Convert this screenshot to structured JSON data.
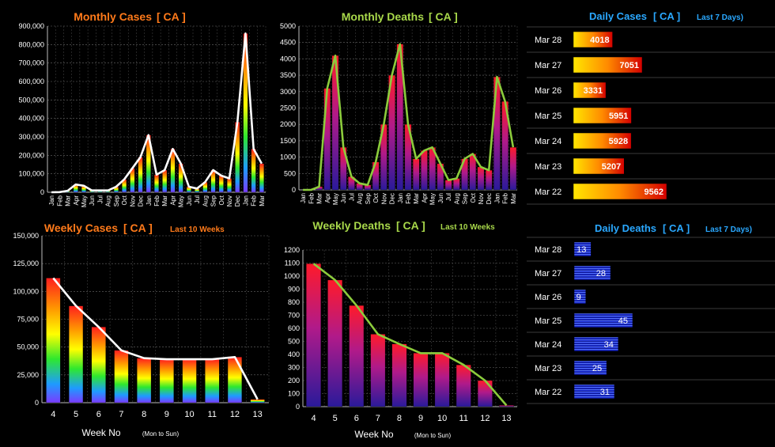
{
  "monthly_cases": {
    "title": "Monthly Cases",
    "region": "[ CA ]",
    "color_title": "#ff7a1a"
  },
  "monthly_deaths": {
    "title": "Monthly Deaths",
    "region": "[ CA ]",
    "color_title": "#a8d84a"
  },
  "daily_cases": {
    "title": "Daily Cases",
    "region": "[ CA ]",
    "note": "Last 7 Days)",
    "color_title": "#2aa8ff"
  },
  "weekly_cases": {
    "title": "Weekly Cases",
    "region": "[ CA ]",
    "note": "Last 10 Weeks",
    "xlabel": "Week No",
    "xnote": "(Mon to Sun)",
    "color_title": "#ff7a1a"
  },
  "weekly_deaths": {
    "title": "Weekly Deaths",
    "region": "[ CA ]",
    "note": "Last 10 Weeks",
    "xlabel": "Week No",
    "xnote": "(Mon to Sun)",
    "color_title": "#a8d84a"
  },
  "daily_deaths": {
    "title": "Daily Deaths",
    "region": "[ CA ]",
    "note": "Last 7 Days)",
    "color_title": "#2aa8ff"
  },
  "chart_data": [
    {
      "id": "monthly_cases",
      "type": "bar",
      "categories": [
        "Jan",
        "Feb",
        "Mar",
        "Apr",
        "May",
        "Jun",
        "Jul",
        "Aug",
        "Sep",
        "Oct",
        "Nov",
        "Dec",
        "Jan",
        "Feb",
        "Mar",
        "Apr",
        "May",
        "Jun",
        "Jul",
        "Aug",
        "Sep",
        "Oct",
        "Nov",
        "Dec",
        "Jan",
        "Feb",
        "Mar"
      ],
      "values": [
        0,
        1000,
        8000,
        42000,
        35000,
        10000,
        10000,
        10000,
        30000,
        70000,
        130000,
        190000,
        310000,
        95000,
        120000,
        235000,
        155000,
        30000,
        20000,
        55000,
        120000,
        90000,
        75000,
        380000,
        860000,
        235000,
        155000
      ],
      "ylim": [
        0,
        900000
      ],
      "yticks": [
        "0",
        "100,000",
        "200,000",
        "300,000",
        "400,000",
        "500,000",
        "600,000",
        "700,000",
        "800,000",
        "900,000"
      ]
    },
    {
      "id": "monthly_deaths",
      "type": "bar",
      "categories": [
        "Jan",
        "Feb",
        "Mar",
        "Apr",
        "May",
        "Jun",
        "Jul",
        "Aug",
        "Sep",
        "Oct",
        "Nov",
        "Dec",
        "Jan",
        "Feb",
        "Mar",
        "Apr",
        "May",
        "Jun",
        "Jul",
        "Aug",
        "Sep",
        "Oct",
        "Nov",
        "Dec",
        "Jan",
        "Feb",
        "Mar"
      ],
      "values": [
        0,
        0,
        100,
        3100,
        4100,
        1300,
        400,
        200,
        150,
        850,
        2000,
        3500,
        4450,
        2000,
        950,
        1200,
        1300,
        800,
        300,
        350,
        950,
        1100,
        700,
        600,
        3450,
        2700,
        1300
      ],
      "ylim": [
        0,
        5000
      ],
      "yticks": [
        "0",
        "500",
        "1000",
        "1500",
        "2000",
        "2500",
        "3000",
        "3500",
        "4000",
        "4500",
        "5000"
      ]
    },
    {
      "id": "daily_cases",
      "type": "bar",
      "categories": [
        "Mar 28",
        "Mar 27",
        "Mar 26",
        "Mar 25",
        "Mar 24",
        "Mar 23",
        "Mar 22"
      ],
      "values": [
        4018,
        7051,
        3331,
        5951,
        5928,
        5207,
        9562
      ]
    },
    {
      "id": "weekly_cases",
      "type": "bar",
      "categories": [
        "4",
        "5",
        "6",
        "7",
        "8",
        "9",
        "10",
        "11",
        "12",
        "13"
      ],
      "values": [
        112000,
        87000,
        68000,
        47000,
        40000,
        39000,
        39000,
        39000,
        41000,
        3000
      ],
      "ylim": [
        0,
        150000
      ],
      "yticks": [
        "0",
        "25,000",
        "50,000",
        "75,000",
        "100,000",
        "125,000",
        "150,000"
      ]
    },
    {
      "id": "weekly_deaths",
      "type": "bar",
      "categories": [
        "4",
        "5",
        "6",
        "7",
        "8",
        "9",
        "10",
        "11",
        "12",
        "13"
      ],
      "values": [
        1095,
        970,
        775,
        555,
        480,
        410,
        410,
        320,
        200,
        10
      ],
      "ylim": [
        0,
        1200
      ],
      "yticks": [
        "0",
        "100",
        "200",
        "300",
        "400",
        "500",
        "600",
        "700",
        "800",
        "900",
        "1000",
        "1100",
        "1200"
      ]
    },
    {
      "id": "daily_deaths",
      "type": "bar",
      "categories": [
        "Mar 28",
        "Mar 27",
        "Mar 26",
        "Mar 25",
        "Mar 24",
        "Mar 23",
        "Mar 22"
      ],
      "values": [
        13,
        28,
        9,
        45,
        34,
        25,
        31
      ]
    }
  ]
}
